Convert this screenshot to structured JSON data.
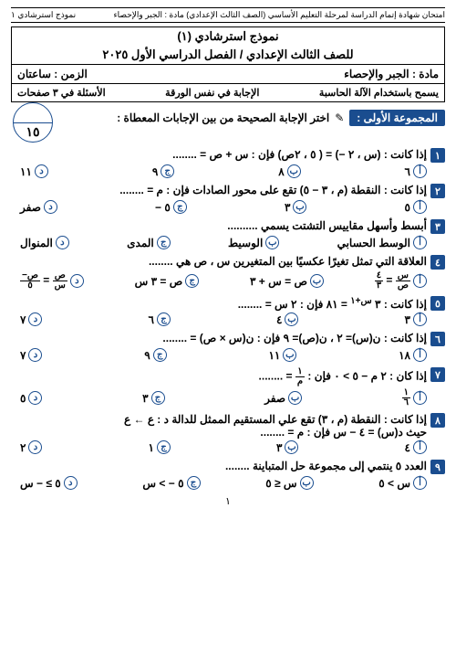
{
  "top": {
    "right": "امتحان شهادة إتمام الدراسة لمرحلة التعليم الأساسي (الصف الثالث الإعدادي)   مادة : الجبر والإحصاء",
    "left": "نموذج استرشادي ١"
  },
  "header": {
    "title": "نموذج استرشادي (١)",
    "sub": "للصف الثالث الإعدادي / الفصل الدراسي الأول ٢٠٢٥",
    "subject_r": "مادة : الجبر والإحصاء",
    "subject_l": "الزمن : ساعتان",
    "row2_r": "يسمح باستخدام الآلة الحاسبة",
    "row2_c": "الإجابة في نفس الورقة",
    "row2_l": "الأسئلة في ٣ صفحات"
  },
  "section": {
    "label": "المجموعة الأولى :",
    "text": "اختر الإجابة الصحيحة من بين الإجابات المعطاة :",
    "score": "١٥"
  },
  "questions": [
    {
      "n": "١",
      "t": "إذا كانت : (س ، ٢ −) = ( ٥ ، ٢ص)   فإن : س + ص = ........",
      "opts": [
        "٦",
        "٨",
        "٩",
        "١١"
      ]
    },
    {
      "n": "٢",
      "t": "إذا كانت : النقطة (م ، ٣ − ٥) تقع على محور الصادات   فإن : م = ........",
      "opts": [
        "٥",
        "٣",
        "٥ −",
        "صفر"
      ]
    },
    {
      "n": "٣",
      "t": "أبسط وأسهل مقاييس التشتت يسمي ..........",
      "opts": [
        "الوسط الحسابي",
        "الوسيط",
        "المدى",
        "المنوال"
      ]
    },
    {
      "n": "٤",
      "t": "العلاقة التي تمثل تغيرًا عكسيًا بين المتغيرين س ، ص هي ........",
      "opts": [
        "<span class='frac'><span class='n'>س</span><span class='d'>ص</span></span> = <span class='frac'><span class='n'>٤</span><span class='d'>٣</span></span>",
        "ص = س + ٣",
        "ص = ٣ س",
        "<span class='frac'><span class='n'>ص</span><span class='d'>س</span></span> = <span class='frac'><span class='n'>ص−</span><span class='d'>٥</span></span>"
      ]
    },
    {
      "n": "٥",
      "t": "إذا كانت : ٣ <sup>س+١</sup> = ٨١   فإن : ٢ س = ........",
      "opts": [
        "٣",
        "٤",
        "٦",
        "٧"
      ]
    },
    {
      "n": "٦",
      "t": "إذا كانت : ن(س)= ٢ ، ن(ص)= ٩   فإن : ن(س × ص) = ........",
      "opts": [
        "١٨",
        "١١",
        "٩",
        "٧"
      ]
    },
    {
      "n": "٧",
      "t": "إذا كان : ٢ م − ٥ > ٠   فإن : <span class='frac'><span class='n'>١</span><span class='d'>م</span></span> = ........",
      "opts": [
        "<span class='frac'><span class='n'>١</span><span class='d'>٦</span></span>",
        "صفر",
        "٣",
        "٥"
      ]
    },
    {
      "n": "٨",
      "t": "إذا كانت : النقطة (م ، ٣) تقع علي المستقيم الممثل للدالة د : ع ← ع<br>حيث د(س) = ٤ − س   فإن : م = ........",
      "opts": [
        "٤",
        "٣",
        "١",
        "٢"
      ]
    },
    {
      "n": "٩",
      "t": "العدد ٥ ينتمي إلى مجموعة حل المتباينة ........",
      "opts": [
        "س > ٥",
        "س ≤ ٥",
        "٥ − > س",
        "٥ ≥ − س"
      ]
    }
  ],
  "page_num": "١",
  "opt_letters": [
    "أ",
    "ب",
    "ج",
    "د"
  ]
}
